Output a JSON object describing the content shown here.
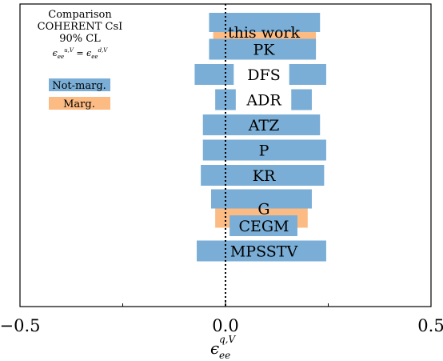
{
  "chart_data": {
    "type": "bar",
    "orientation": "horizontal-interval",
    "xlabel": "ε_ee^{q,V}",
    "xlim": [
      -0.5,
      0.5
    ],
    "xticks": [
      "−0.5",
      "0.0",
      "0.5"
    ],
    "grid": false,
    "reference_line": {
      "x": 0.0,
      "style": "dotted"
    },
    "annotation": {
      "lines": [
        "Comparison",
        "COHERENT CsI",
        "90% CL"
      ],
      "condition": "ε_ee^{u,V} = ε_ee^{d,V}"
    },
    "legend": {
      "placement": "top-left",
      "entries": [
        {
          "name": "Not-marg.",
          "color": "#7aaed6"
        },
        {
          "name": "Marg.",
          "color": "#fdbb84"
        }
      ]
    },
    "colors": {
      "not_marg": "#7aaed6",
      "marg": "#fdbb84",
      "label_bg": "#ffffff"
    },
    "rows": [
      {
        "label": "this work",
        "not_marg": [
          [
            -0.04,
            0.23
          ]
        ],
        "marg": [
          [
            -0.03,
            0.22
          ]
        ]
      },
      {
        "label": "PK",
        "not_marg": [
          [
            -0.04,
            0.22
          ]
        ],
        "marg": []
      },
      {
        "label": "DFS",
        "not_marg": [
          [
            -0.075,
            0.02
          ],
          [
            0.155,
            0.245
          ]
        ],
        "marg": []
      },
      {
        "label": "ADR",
        "not_marg": [
          [
            -0.025,
            0.025
          ],
          [
            0.16,
            0.21
          ]
        ],
        "marg": []
      },
      {
        "label": "ATZ",
        "not_marg": [
          [
            -0.055,
            0.23
          ]
        ],
        "marg": []
      },
      {
        "label": "P",
        "not_marg": [
          [
            -0.055,
            0.245
          ]
        ],
        "marg": []
      },
      {
        "label": "KR",
        "not_marg": [
          [
            -0.06,
            0.24
          ]
        ],
        "marg": []
      },
      {
        "label": "G",
        "not_marg": [
          [
            -0.035,
            0.21
          ]
        ],
        "marg": [
          [
            -0.025,
            0.2
          ]
        ]
      },
      {
        "label": "CEGM",
        "not_marg": [
          [
            0.01,
            0.175
          ]
        ],
        "marg": []
      },
      {
        "label": "MPSSTV",
        "not_marg": [
          [
            -0.07,
            0.245
          ]
        ],
        "marg": []
      }
    ]
  }
}
